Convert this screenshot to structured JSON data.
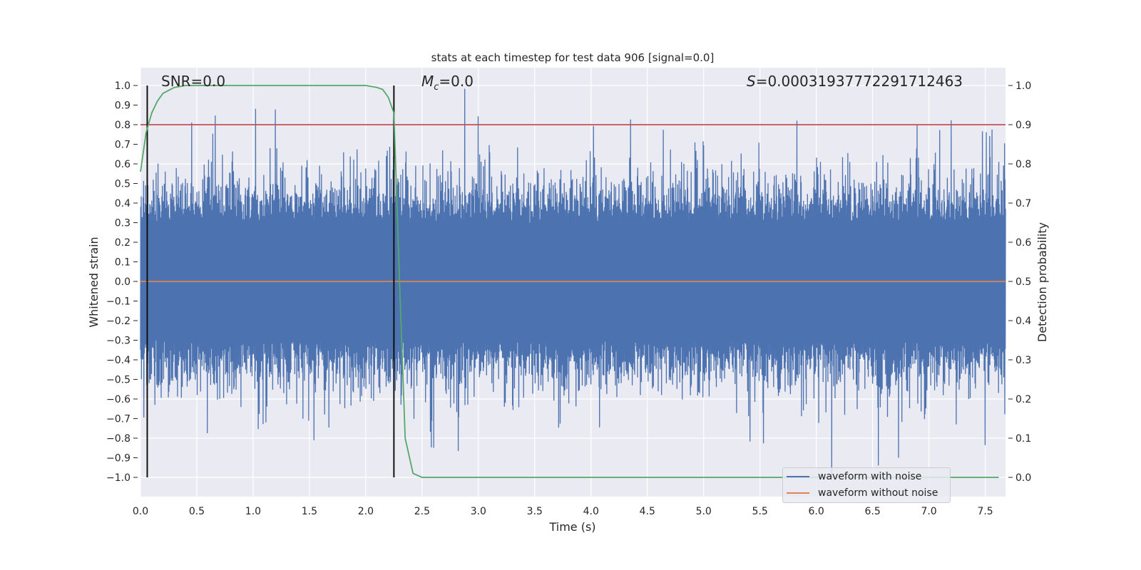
{
  "chart_data": {
    "type": "line",
    "title": "stats at each timestep for test data 906 [signal=0.0]",
    "xlabel": "Time (s)",
    "ylabel": "Whitened strain",
    "ylabel_right": "Detection probability",
    "xlim": [
      0.0,
      7.68
    ],
    "ylim": [
      -1.1,
      1.1
    ],
    "ylim_right": [
      -0.05,
      1.05
    ],
    "x_ticks": [
      "0.0",
      "0.5",
      "1.0",
      "1.5",
      "2.0",
      "2.5",
      "3.0",
      "3.5",
      "4.0",
      "4.5",
      "5.0",
      "5.5",
      "6.0",
      "6.5",
      "7.0",
      "7.5"
    ],
    "y_ticks": [
      "1.0",
      "0.9",
      "0.8",
      "0.7",
      "0.6",
      "0.5",
      "0.4",
      "0.3",
      "0.2",
      "0.1",
      "0.0",
      "−0.1",
      "−0.2",
      "−0.3",
      "−0.4",
      "−0.5",
      "−0.6",
      "−0.7",
      "−0.8",
      "−0.9",
      "−1.0"
    ],
    "y_ticks_right": [
      "1.0",
      "0.9",
      "0.8",
      "0.7",
      "0.6",
      "0.5",
      "0.4",
      "0.3",
      "0.2",
      "0.1",
      "0.0"
    ],
    "grid": true,
    "annotations": {
      "snr": "SNR=0.0",
      "mc": "=0.0",
      "mc_symbol": "M",
      "mc_sub": "c",
      "s": "=0.00031937772291712463",
      "s_symbol": "S"
    },
    "series": [
      {
        "name": "waveform with noise",
        "axis": "left",
        "color": "#4c72b0",
        "kind": "noise",
        "range": [
          -1.0,
          1.0
        ]
      },
      {
        "name": "waveform without noise",
        "axis": "left",
        "color": "#dd8452",
        "x": [
          0.0,
          7.68
        ],
        "y": [
          0.0,
          0.0
        ]
      },
      {
        "axis": "right",
        "color": "#55a868",
        "x": [
          0.0,
          0.05,
          0.1,
          0.15,
          0.2,
          0.3,
          0.4,
          2.0,
          2.1,
          2.15,
          2.2,
          2.25,
          2.3,
          2.35,
          2.42,
          2.5,
          7.62
        ],
        "y": [
          0.78,
          0.88,
          0.93,
          0.96,
          0.98,
          0.995,
          1.0,
          1.0,
          0.995,
          0.99,
          0.97,
          0.93,
          0.5,
          0.1,
          0.01,
          0.0,
          0.0
        ]
      }
    ],
    "threshold": {
      "axis": "right",
      "value": 0.9,
      "color": "#c44e52"
    },
    "vertical_lines": [
      0.06,
      2.25
    ],
    "legend_placement": "lower-right"
  }
}
